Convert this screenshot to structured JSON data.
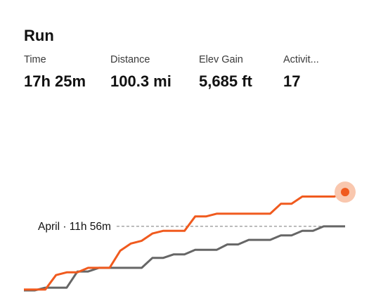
{
  "card": {
    "title": "Run"
  },
  "stats": [
    {
      "label": "Time",
      "value": "17h 25m"
    },
    {
      "label": "Distance",
      "value": "100.3 mi"
    },
    {
      "label": "Elev Gain",
      "value": "5,685 ft"
    },
    {
      "label": "Activit...",
      "value": "17"
    }
  ],
  "colors": {
    "current": "#f05a1e",
    "previous": "#666666",
    "reference_line": "#777777",
    "end_halo": "#f9c7ae"
  },
  "chart_data": {
    "type": "line",
    "title": "",
    "xlabel": "",
    "ylabel": "",
    "x": [
      1,
      2,
      3,
      4,
      5,
      6,
      7,
      8,
      9,
      10,
      11,
      12,
      13,
      14,
      15,
      16,
      17,
      18,
      19,
      20,
      21,
      22,
      23,
      24,
      25,
      26,
      27,
      28,
      29,
      30,
      31
    ],
    "xlim": [
      1,
      31
    ],
    "ylim": [
      0,
      18
    ],
    "grid": false,
    "legend": "none",
    "series": [
      {
        "values": [
          0.1,
          0.1,
          0.1,
          1.7,
          2.0,
          2.0,
          2.5,
          2.5,
          2.5,
          4.4,
          5.2,
          5.5,
          6.3,
          6.6,
          6.6,
          6.6,
          8.2,
          8.2,
          8.5,
          8.5,
          8.5,
          8.5,
          8.5,
          8.5,
          9.6,
          9.6,
          10.4,
          10.4,
          10.4,
          10.4,
          10.9
        ]
      },
      {
        "values": [
          0.0,
          0.0,
          0.3,
          0.3,
          0.3,
          2.1,
          2.1,
          2.5,
          2.5,
          2.5,
          2.5,
          2.5,
          3.6,
          3.6,
          4.0,
          4.0,
          4.5,
          4.5,
          4.5,
          5.1,
          5.1,
          5.6,
          5.6,
          5.6,
          6.1,
          6.1,
          6.6,
          6.6,
          7.1,
          7.1,
          7.1
        ]
      }
    ],
    "reference": {
      "label": "April · 11h 56m",
      "value": 7.1
    }
  }
}
